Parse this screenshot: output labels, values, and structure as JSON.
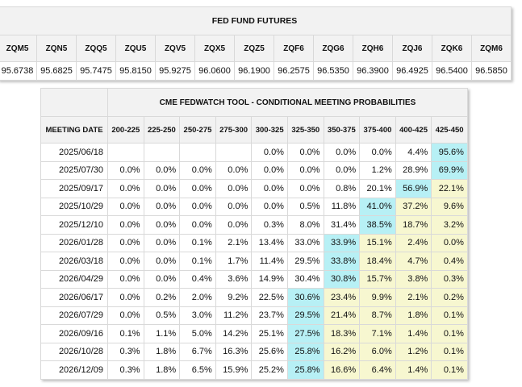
{
  "futures": {
    "title": "FED FUND FUTURES",
    "contracts": [
      "ZQM5",
      "ZQN5",
      "ZQQ5",
      "ZQU5",
      "ZQV5",
      "ZQX5",
      "ZQZ5",
      "ZQF6",
      "ZQG6",
      "ZQH6",
      "ZQJ6",
      "ZQK6",
      "ZQM6"
    ],
    "prices": [
      "95.6738",
      "95.6825",
      "95.7475",
      "95.8150",
      "95.9275",
      "96.0600",
      "96.1900",
      "96.2575",
      "96.5350",
      "96.3900",
      "96.4925",
      "96.5400",
      "96.5850"
    ]
  },
  "fedwatch": {
    "title": "CME FEDWATCH TOOL - CONDITIONAL MEETING PROBABILITIES",
    "meeting_date_label": "MEETING DATE",
    "ranges": [
      "200-225",
      "225-250",
      "250-275",
      "275-300",
      "300-325",
      "325-350",
      "350-375",
      "375-400",
      "400-425",
      "425-450"
    ],
    "highlight_color": "#b7f0f5",
    "pale_color": "#f7f7d0",
    "rows": [
      {
        "date": "2025/06/18",
        "cells": [
          "",
          "",
          "",
          "",
          "0.0%",
          "0.0%",
          "0.0%",
          "0.0%",
          "4.4%",
          "95.6%"
        ],
        "hi": 9,
        "pale": []
      },
      {
        "date": "2025/07/30",
        "cells": [
          "0.0%",
          "0.0%",
          "0.0%",
          "0.0%",
          "0.0%",
          "0.0%",
          "0.0%",
          "1.2%",
          "28.9%",
          "69.9%"
        ],
        "hi": 9,
        "pale": []
      },
      {
        "date": "2025/09/17",
        "cells": [
          "0.0%",
          "0.0%",
          "0.0%",
          "0.0%",
          "0.0%",
          "0.0%",
          "0.8%",
          "20.1%",
          "56.9%",
          "22.1%"
        ],
        "hi": 8,
        "pale": [
          9
        ]
      },
      {
        "date": "2025/10/29",
        "cells": [
          "0.0%",
          "0.0%",
          "0.0%",
          "0.0%",
          "0.0%",
          "0.5%",
          "11.8%",
          "41.0%",
          "37.2%",
          "9.6%"
        ],
        "hi": 7,
        "pale": [
          8,
          9
        ]
      },
      {
        "date": "2025/12/10",
        "cells": [
          "0.0%",
          "0.0%",
          "0.0%",
          "0.0%",
          "0.3%",
          "8.0%",
          "31.4%",
          "38.5%",
          "18.7%",
          "3.2%"
        ],
        "hi": 7,
        "pale": [
          8,
          9
        ]
      },
      {
        "date": "2026/01/28",
        "cells": [
          "0.0%",
          "0.0%",
          "0.1%",
          "2.1%",
          "13.4%",
          "33.0%",
          "33.9%",
          "15.1%",
          "2.4%",
          "0.0%"
        ],
        "hi": 6,
        "pale": [
          7,
          8,
          9
        ]
      },
      {
        "date": "2026/03/18",
        "cells": [
          "0.0%",
          "0.0%",
          "0.1%",
          "1.7%",
          "11.4%",
          "29.5%",
          "33.8%",
          "18.4%",
          "4.7%",
          "0.4%"
        ],
        "hi": 6,
        "pale": [
          7,
          8,
          9
        ]
      },
      {
        "date": "2026/04/29",
        "cells": [
          "0.0%",
          "0.0%",
          "0.4%",
          "3.6%",
          "14.9%",
          "30.4%",
          "30.8%",
          "15.7%",
          "3.8%",
          "0.3%"
        ],
        "hi": 6,
        "pale": [
          7,
          8,
          9
        ]
      },
      {
        "date": "2026/06/17",
        "cells": [
          "0.0%",
          "0.2%",
          "2.0%",
          "9.2%",
          "22.5%",
          "30.6%",
          "23.4%",
          "9.9%",
          "2.1%",
          "0.2%"
        ],
        "hi": 5,
        "pale": [
          6,
          7,
          8,
          9
        ]
      },
      {
        "date": "2026/07/29",
        "cells": [
          "0.0%",
          "0.5%",
          "3.0%",
          "11.2%",
          "23.7%",
          "29.5%",
          "21.4%",
          "8.7%",
          "1.8%",
          "0.1%"
        ],
        "hi": 5,
        "pale": [
          6,
          7,
          8,
          9
        ]
      },
      {
        "date": "2026/09/16",
        "cells": [
          "0.1%",
          "1.1%",
          "5.0%",
          "14.2%",
          "25.1%",
          "27.5%",
          "18.3%",
          "7.1%",
          "1.4%",
          "0.1%"
        ],
        "hi": 5,
        "pale": [
          6,
          7,
          8,
          9
        ]
      },
      {
        "date": "2026/10/28",
        "cells": [
          "0.3%",
          "1.8%",
          "6.7%",
          "16.3%",
          "25.6%",
          "25.8%",
          "16.2%",
          "6.0%",
          "1.2%",
          "0.1%"
        ],
        "hi": 5,
        "pale": [
          6,
          7,
          8,
          9
        ]
      },
      {
        "date": "2026/12/09",
        "cells": [
          "0.3%",
          "1.8%",
          "6.5%",
          "15.9%",
          "25.2%",
          "25.8%",
          "16.6%",
          "6.4%",
          "1.4%",
          "0.1%"
        ],
        "hi": 5,
        "pale": [
          6,
          7,
          8,
          9
        ]
      }
    ]
  }
}
